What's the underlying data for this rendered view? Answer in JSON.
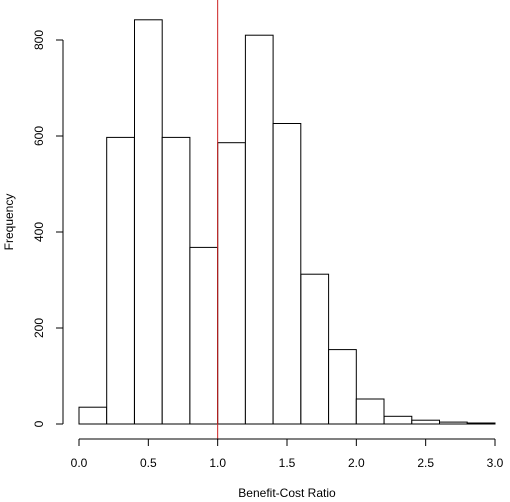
{
  "chart_data": {
    "type": "bar",
    "title": "",
    "xlabel": "Benefit-Cost Ratio",
    "ylabel": "Frequency",
    "bin_width": 0.2,
    "bins": [
      {
        "start": 0.0,
        "end": 0.2,
        "count": 35
      },
      {
        "start": 0.2,
        "end": 0.4,
        "count": 597
      },
      {
        "start": 0.4,
        "end": 0.6,
        "count": 842
      },
      {
        "start": 0.6,
        "end": 0.8,
        "count": 597
      },
      {
        "start": 0.8,
        "end": 1.0,
        "count": 368
      },
      {
        "start": 1.0,
        "end": 1.2,
        "count": 586
      },
      {
        "start": 1.2,
        "end": 1.4,
        "count": 810
      },
      {
        "start": 1.4,
        "end": 1.6,
        "count": 626
      },
      {
        "start": 1.6,
        "end": 1.8,
        "count": 312
      },
      {
        "start": 1.8,
        "end": 2.0,
        "count": 155
      },
      {
        "start": 2.0,
        "end": 2.2,
        "count": 52
      },
      {
        "start": 2.2,
        "end": 2.4,
        "count": 16
      },
      {
        "start": 2.4,
        "end": 2.6,
        "count": 8
      },
      {
        "start": 2.6,
        "end": 2.8,
        "count": 4
      },
      {
        "start": 2.8,
        "end": 3.0,
        "count": 2
      }
    ],
    "xlim": [
      0.0,
      3.0
    ],
    "ylim": [
      0,
      900
    ],
    "x_ticks": [
      "0.0",
      "0.5",
      "1.0",
      "1.5",
      "2.0",
      "2.5",
      "3.0"
    ],
    "y_ticks": [
      "0",
      "200",
      "400",
      "600",
      "800"
    ],
    "reference_line": {
      "x": 1.0,
      "color": "#cc2222"
    },
    "grid": false,
    "legend": "none"
  }
}
